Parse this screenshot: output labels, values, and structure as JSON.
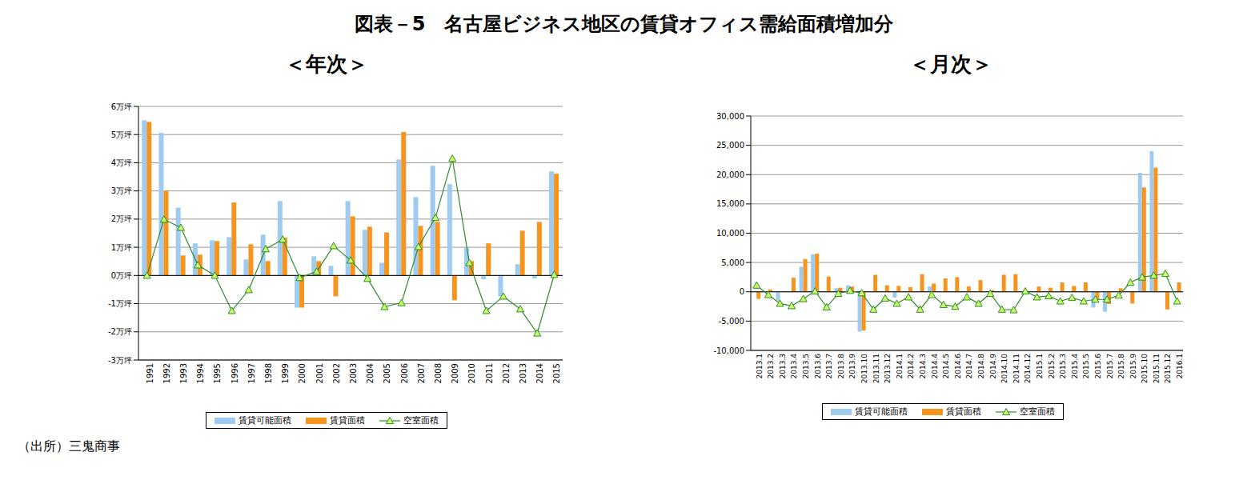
{
  "title": "図表－5　名古屋ビジネス地区の賃貸オフィス需給面積増加分",
  "source": "（出所）三鬼商事",
  "chart_data": [
    {
      "type": "bar",
      "subtitle": "＜年次＞",
      "categories": [
        "1991",
        "1992",
        "1993",
        "1994",
        "1995",
        "1996",
        "1997",
        "1998",
        "1999",
        "2000",
        "2001",
        "2002",
        "2003",
        "2004",
        "2005",
        "2006",
        "2007",
        "2008",
        "2009",
        "2010",
        "2011",
        "2012",
        "2013",
        "2014",
        "2015"
      ],
      "series": [
        {
          "name": "賃貸可能面積",
          "type": "bar",
          "color": "#9fcbf0",
          "values": [
            5.51,
            5.06,
            2.41,
            1.14,
            1.25,
            1.36,
            0.57,
            1.45,
            2.64,
            -1.14,
            0.68,
            0.34,
            2.64,
            1.62,
            0.45,
            4.12,
            2.78,
            3.89,
            3.24,
            0.97,
            -0.14,
            -0.74,
            0.4,
            -0.11,
            3.69
          ]
        },
        {
          "name": "賃貸面積",
          "type": "bar",
          "color": "#f7941d",
          "values": [
            5.45,
            3.01,
            0.71,
            0.74,
            1.22,
            2.59,
            1.11,
            0.51,
            1.34,
            -1.14,
            0.51,
            -0.74,
            2.1,
            1.73,
            1.53,
            5.09,
            1.76,
            1.9,
            -0.88,
            0.51,
            1.14,
            0,
            1.59,
            1.9,
            3.61
          ]
        },
        {
          "name": "空室面積",
          "type": "line",
          "color": "#2e8b2e",
          "marker": "triangle",
          "values": [
            0,
            1.99,
            1.7,
            0.37,
            0,
            -1.25,
            -0.51,
            0.94,
            1.28,
            -0.08,
            0.14,
            1.05,
            0.54,
            -0.11,
            -1.11,
            -0.97,
            1.02,
            2.05,
            4.15,
            0.45,
            -1.25,
            -0.74,
            -1.19,
            -2.05,
            0.03
          ]
        }
      ],
      "ylim": [
        -3,
        6
      ],
      "yticks": [
        {
          "value": -3,
          "label": "-3万坪"
        },
        {
          "value": -2,
          "label": "-2万坪"
        },
        {
          "value": -1,
          "label": "-1万坪"
        },
        {
          "value": 0,
          "label": "0万坪"
        },
        {
          "value": 1,
          "label": "1万坪"
        },
        {
          "value": 2,
          "label": "2万坪"
        },
        {
          "value": 3,
          "label": "3万坪"
        },
        {
          "value": 4,
          "label": "4万坪"
        },
        {
          "value": 5,
          "label": "5万坪"
        },
        {
          "value": 6,
          "label": "6万坪"
        }
      ],
      "grid": true,
      "legend": "bottom"
    },
    {
      "type": "bar",
      "subtitle": "＜月次＞",
      "categories": [
        "2013.1",
        "2013.2",
        "2013.3",
        "2013.4",
        "2013.5",
        "2013.6",
        "2013.7",
        "2013.8",
        "2013.9",
        "2013.10",
        "2013.11",
        "2013.12",
        "2014.1",
        "2014.2",
        "2014.3",
        "2014.4",
        "2014.5",
        "2014.6",
        "2014.7",
        "2014.8",
        "2014.9",
        "2014.10",
        "2014.11",
        "2014.12",
        "2015.1",
        "2015.2",
        "2015.3",
        "2015.4",
        "2015.5",
        "2015.6",
        "2015.7",
        "2015.8",
        "2015.9",
        "2015.10",
        "2015.11",
        "2015.12",
        "2016.1"
      ],
      "series": [
        {
          "name": "賃貸可能面積",
          "type": "bar",
          "color": "#9fcbf0",
          "values": [
            0,
            0,
            -1500,
            0,
            4300,
            6400,
            0,
            600,
            1100,
            -6800,
            0,
            0,
            -1000,
            0,
            0,
            900,
            0,
            0,
            0,
            0,
            0,
            0,
            0,
            100,
            0,
            0,
            0,
            0,
            0,
            -2700,
            -3400,
            0,
            0,
            20300,
            24000,
            0,
            0
          ]
        },
        {
          "name": "賃貸面積",
          "type": "bar",
          "color": "#f7941d",
          "values": [
            -1200,
            400,
            0,
            2400,
            5600,
            6500,
            2600,
            700,
            900,
            -6600,
            2900,
            1100,
            1000,
            800,
            3000,
            1400,
            2300,
            2500,
            900,
            2000,
            300,
            2900,
            3000,
            0,
            900,
            700,
            1600,
            1000,
            1600,
            -1400,
            -2100,
            600,
            -2000,
            17800,
            21200,
            -3000,
            1600
          ]
        },
        {
          "name": "空室面積",
          "type": "line",
          "color": "#2e8b2e",
          "marker": "triangle",
          "values": [
            1100,
            -500,
            -2000,
            -2400,
            -1200,
            100,
            -2600,
            -300,
            200,
            -200,
            -3000,
            -1100,
            -2000,
            -900,
            -3000,
            -500,
            -2200,
            -2500,
            -900,
            -2000,
            -300,
            -3000,
            -3100,
            100,
            -900,
            -700,
            -1600,
            -1000,
            -1600,
            -1300,
            -1300,
            -600,
            1600,
            2500,
            2800,
            3100,
            -1600
          ]
        }
      ],
      "ylim": [
        -10000,
        30000
      ],
      "yticks": [
        {
          "value": -10000,
          "label": "-10,000"
        },
        {
          "value": -5000,
          "label": "-5,000"
        },
        0,
        {
          "value": 5000,
          "label": "5,000"
        },
        {
          "value": 10000,
          "label": "10,000"
        },
        {
          "value": 15000,
          "label": "15,000"
        },
        {
          "value": 20000,
          "label": "20,000"
        },
        {
          "value": 25000,
          "label": "25,000"
        },
        {
          "value": 30000,
          "label": "30,000"
        }
      ],
      "grid": true,
      "legend": "bottom"
    }
  ]
}
